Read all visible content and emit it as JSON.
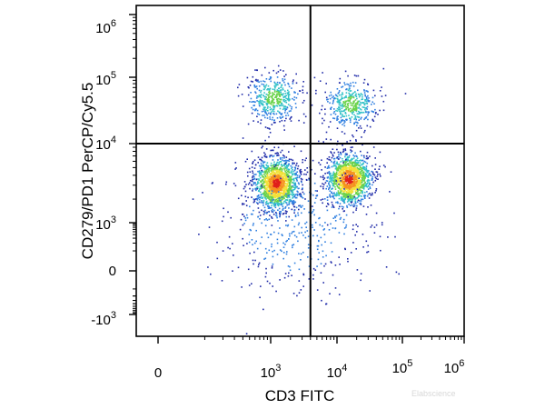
{
  "chart_data": {
    "type": "scatter",
    "title": "",
    "xlabel": "CD3 FITC",
    "ylabel": "CD279/PD1 PerCP/Cy5.5",
    "x_scale": "biexponential",
    "y_scale": "biexponential",
    "x_ticks": [
      {
        "base": "0",
        "exp": ""
      },
      {
        "base": "10",
        "exp": "3"
      },
      {
        "base": "10",
        "exp": "4"
      },
      {
        "base": "10",
        "exp": "5"
      },
      {
        "base": "10",
        "exp": "6"
      }
    ],
    "y_ticks": [
      {
        "base": "10",
        "exp": "6"
      },
      {
        "base": "10",
        "exp": "5"
      },
      {
        "base": "10",
        "exp": "4"
      },
      {
        "base": "10",
        "exp": "3"
      },
      {
        "base": "0",
        "exp": ""
      },
      {
        "base": "-10",
        "exp": "3"
      }
    ],
    "quadrant_gates": {
      "x": 4000,
      "y": 10000
    },
    "populations": [
      {
        "name": "",
        "x_center": 1200,
        "y_center": 3200,
        "count": 1400,
        "density": "high"
      },
      {
        "name": "",
        "x_center": 15000,
        "y_center": 3600,
        "count": 1300,
        "density": "high"
      },
      {
        "name": "",
        "x_center": 1100,
        "y_center": 50000,
        "count": 450,
        "density": "medium"
      },
      {
        "name": "",
        "x_center": 16000,
        "y_center": 40000,
        "count": 420,
        "density": "medium"
      },
      {
        "name": "",
        "x_center": 2500,
        "y_center": 1000,
        "count": 500,
        "density": "low"
      }
    ],
    "color_scale": [
      "#1f2aa8",
      "#2f7fe0",
      "#33c2c8",
      "#6ad24a",
      "#f2e23a",
      "#f5921e",
      "#e0201b"
    ],
    "grid": false,
    "legend": "none"
  },
  "watermark": "Elabscience"
}
